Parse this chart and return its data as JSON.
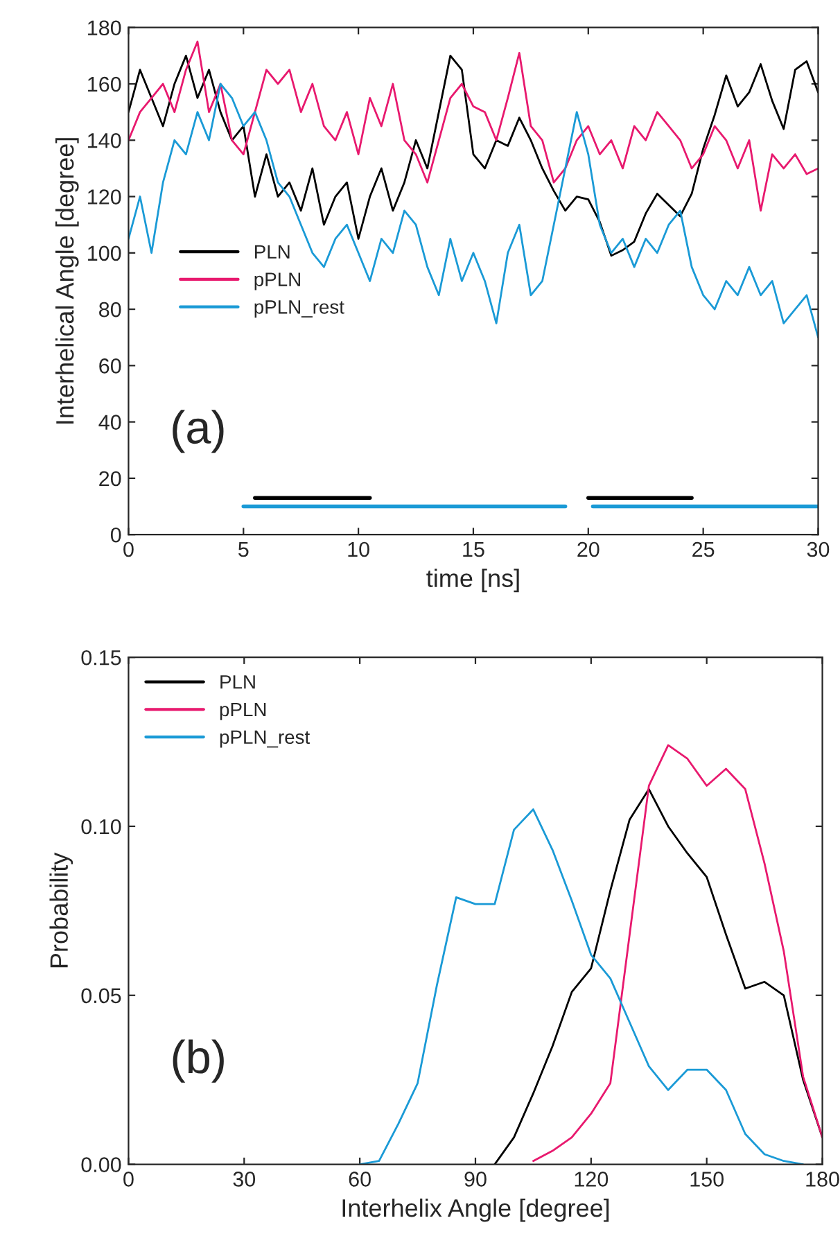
{
  "chart_data": [
    {
      "type": "line",
      "xlabel": "time [ns]",
      "ylabel": "Interhelical Angle [degree]",
      "xlim": [
        0,
        30
      ],
      "ylim": [
        0,
        180
      ],
      "xticks": [
        0,
        5,
        10,
        15,
        20,
        25,
        30
      ],
      "yticks": [
        0,
        20,
        40,
        60,
        80,
        100,
        120,
        140,
        160,
        180
      ],
      "legend": "center left",
      "grid": false,
      "annotations": [
        "(a)"
      ],
      "x": [
        0,
        0.5,
        1,
        1.5,
        2,
        2.5,
        3,
        3.5,
        4,
        4.5,
        5,
        5.5,
        6,
        6.5,
        7,
        7.5,
        8,
        8.5,
        9,
        9.5,
        10,
        10.5,
        11,
        11.5,
        12,
        12.5,
        13,
        13.5,
        14,
        14.5,
        15,
        15.5,
        16,
        16.5,
        17,
        17.5,
        18,
        18.5,
        19,
        19.5,
        20,
        20.5,
        21,
        21.5,
        22,
        22.5,
        23,
        23.5,
        24,
        24.5,
        25,
        25.5,
        26,
        26.5,
        27,
        27.5,
        28,
        28.5,
        29,
        29.5,
        30
      ],
      "series": [
        {
          "name": "PLN",
          "color": "#000000",
          "values": [
            150,
            165,
            155,
            145,
            160,
            170,
            155,
            165,
            150,
            140,
            145,
            120,
            135,
            120,
            125,
            115,
            130,
            110,
            120,
            125,
            105,
            120,
            130,
            115,
            125,
            140,
            130,
            150,
            170,
            165,
            135,
            130,
            140,
            138,
            148,
            140,
            130,
            122,
            115,
            120,
            119,
            111,
            99,
            101,
            104,
            114,
            121,
            117,
            113,
            121,
            137,
            149,
            163,
            152,
            157,
            167,
            154,
            144,
            165,
            168,
            157
          ]
        },
        {
          "name": "pPLN",
          "color": "#e8196e",
          "values": [
            140,
            150,
            155,
            160,
            150,
            165,
            175,
            150,
            160,
            140,
            135,
            150,
            165,
            160,
            165,
            150,
            160,
            145,
            140,
            150,
            135,
            155,
            145,
            160,
            140,
            135,
            125,
            140,
            155,
            160,
            152,
            150,
            140,
            155,
            171,
            145,
            140,
            125,
            130,
            140,
            145,
            135,
            140,
            130,
            145,
            140,
            150,
            145,
            140,
            130,
            135,
            145,
            140,
            130,
            140,
            115,
            135,
            130,
            135,
            128,
            130
          ]
        },
        {
          "name": "pPLN_rest",
          "color": "#1a9ad6",
          "values": [
            105,
            120,
            100,
            125,
            140,
            135,
            150,
            140,
            160,
            155,
            145,
            150,
            140,
            125,
            120,
            110,
            100,
            95,
            105,
            110,
            100,
            90,
            105,
            100,
            115,
            110,
            95,
            85,
            105,
            90,
            100,
            90,
            75,
            100,
            110,
            85,
            90,
            110,
            130,
            150,
            135,
            110,
            100,
            105,
            95,
            105,
            100,
            110,
            115,
            95,
            85,
            80,
            90,
            85,
            95,
            85,
            90,
            75,
            80,
            85,
            70
          ]
        },
        {
          "color": "#000000",
          "x": [
            5.5,
            10.5,
            15,
            20,
            24.5
          ],
          "values": [
            13,
            13,
            null,
            13,
            13
          ]
        },
        {
          "color": "#1a9ad6",
          "x": [
            5,
            19,
            19.5,
            20.2,
            30
          ],
          "values": [
            10,
            10,
            null,
            10,
            10
          ]
        }
      ]
    },
    {
      "type": "line",
      "xlabel": "Interhelix Angle [degree]",
      "ylabel": "Probability",
      "xlim": [
        0,
        180
      ],
      "ylim": [
        0,
        0.15
      ],
      "xticks": [
        0,
        30,
        60,
        90,
        120,
        150,
        180
      ],
      "yticks": [
        {
          "value": 0,
          "label": "0.00"
        },
        {
          "value": 0.05,
          "label": "0.05"
        },
        {
          "value": 0.1,
          "label": "0.10"
        },
        {
          "value": 0.15,
          "label": "0.15"
        }
      ],
      "legend": "top left",
      "grid": false,
      "annotations": [
        "(b)"
      ],
      "series": [
        {
          "name": "PLN",
          "color": "#000000",
          "x": [
            95,
            100,
            105,
            110,
            115,
            120,
            125,
            130,
            135,
            140,
            145,
            150,
            155,
            160,
            165,
            170,
            175,
            180
          ],
          "values": [
            0,
            0.008,
            0.021,
            0.035,
            0.051,
            0.058,
            0.081,
            0.102,
            0.111,
            0.1,
            0.092,
            0.085,
            0.068,
            0.052,
            0.054,
            0.05,
            0.025,
            0.008
          ]
        },
        {
          "name": "pPLN",
          "color": "#e8196e",
          "x": [
            105,
            110,
            115,
            120,
            125,
            130,
            135,
            140,
            145,
            150,
            155,
            160,
            165,
            170,
            175,
            180
          ],
          "values": [
            0.001,
            0.004,
            0.008,
            0.015,
            0.024,
            0.068,
            0.112,
            0.124,
            0.12,
            0.112,
            0.117,
            0.111,
            0.089,
            0.063,
            0.026,
            0.008
          ]
        },
        {
          "name": "pPLN_rest",
          "color": "#1a9ad6",
          "x": [
            60,
            65,
            70,
            75,
            80,
            85,
            90,
            95,
            100,
            105,
            110,
            115,
            120,
            125,
            130,
            135,
            140,
            145,
            150,
            155,
            160,
            165,
            170,
            175
          ],
          "values": [
            0,
            0.001,
            0.012,
            0.024,
            0.053,
            0.079,
            0.077,
            0.077,
            0.099,
            0.105,
            0.093,
            0.078,
            0.062,
            0.055,
            0.042,
            0.029,
            0.022,
            0.028,
            0.028,
            0.022,
            0.009,
            0.003,
            0.001,
            0
          ]
        }
      ]
    }
  ]
}
